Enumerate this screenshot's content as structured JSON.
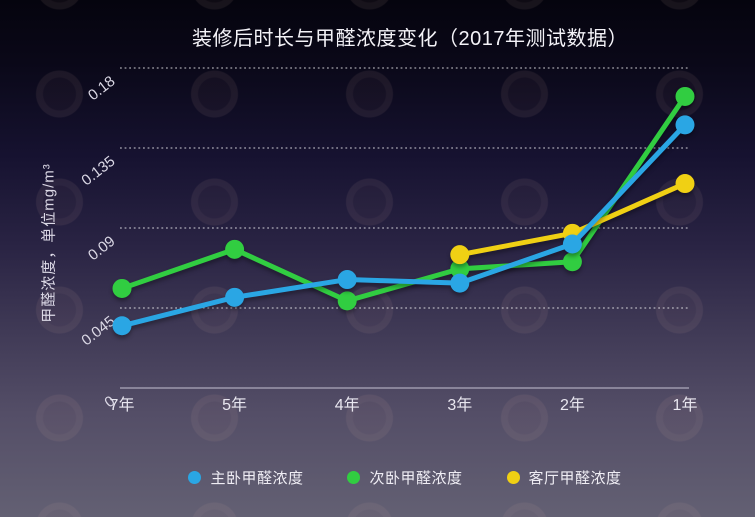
{
  "title": "装修后时长与甲醛浓度变化（2017年测试数据）",
  "chart_data": {
    "type": "line",
    "title": "装修后时长与甲醛浓度变化（2017年测试数据）",
    "xlabel": "",
    "ylabel": "甲醛浓度，单位mg/m³",
    "categories": [
      "7年",
      "5年",
      "4年",
      "3年",
      "2年",
      "1年"
    ],
    "series": [
      {
        "name": "主卧甲醛浓度",
        "color": "#2aa6e4",
        "values": [
          0.035,
          0.051,
          0.061,
          0.059,
          0.081,
          0.148
        ]
      },
      {
        "name": "次卧甲醛浓度",
        "color": "#31cd41",
        "values": [
          0.056,
          0.078,
          0.049,
          0.067,
          0.071,
          0.164
        ]
      },
      {
        "name": "客厅甲醛浓度",
        "color": "#f0d014",
        "values": [
          null,
          null,
          null,
          0.075,
          0.087,
          0.115
        ]
      }
    ],
    "ylim": [
      0,
      0.18
    ],
    "yticks": [
      0,
      0.045,
      0.09,
      0.135,
      0.18
    ],
    "ytick_labels": [
      "0",
      "0.045",
      "0.09",
      "0.135",
      "0.18"
    ],
    "grid": "horizontal-dotted",
    "legend_position": "bottom",
    "background": "dark-gradient",
    "colors": {
      "text_primary": "#f4f3f8",
      "text_secondary": "#dcd9e6",
      "gridline": "#ffffff",
      "series_blue": "#2aa6e4",
      "series_green": "#31cd41",
      "series_yellow": "#f0d014"
    }
  }
}
